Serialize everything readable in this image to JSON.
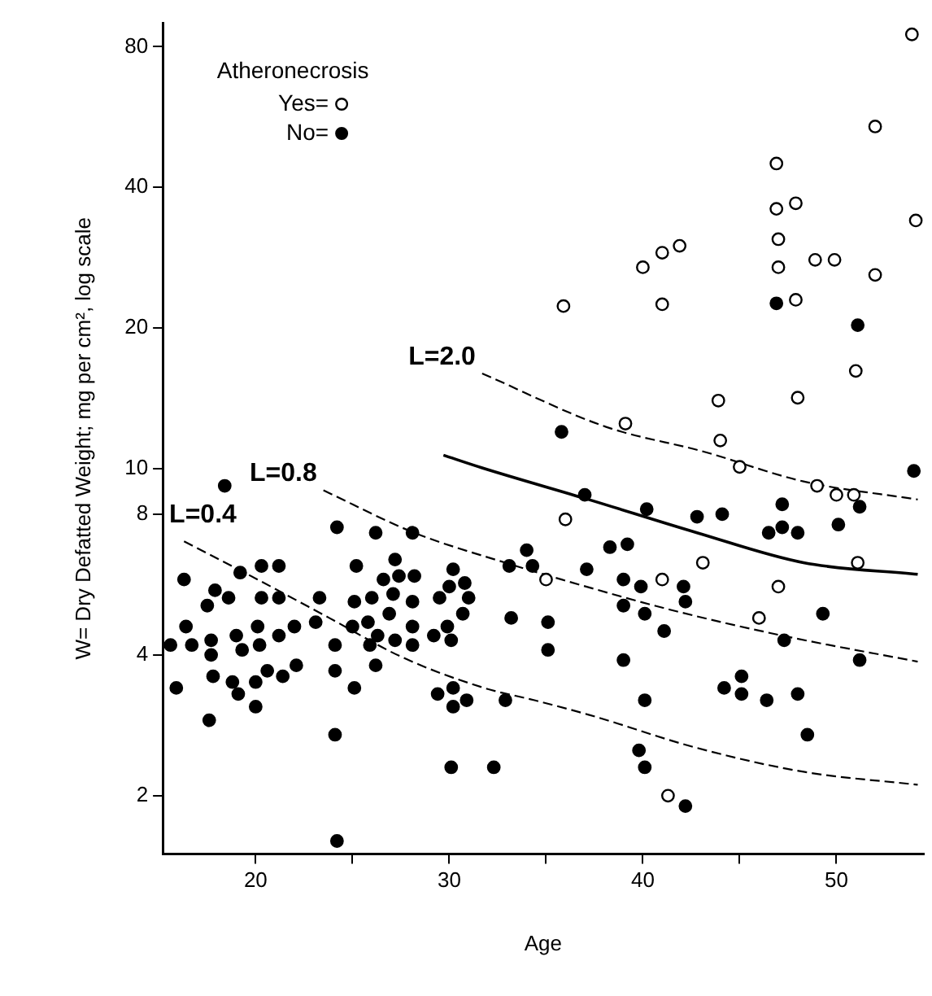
{
  "chart_data": {
    "type": "scatter",
    "xlabel": "Age",
    "ylabel": "W= Dry Defatted Weight; mg per cm², log scale",
    "legend_title": "Atheronecrosis",
    "legend": "top left",
    "log": "y",
    "grid": false,
    "xlim": [
      15.2,
      54.5
    ],
    "xticks": [
      20,
      {
        "value": 25,
        "label": null
      },
      30,
      {
        "value": 35,
        "label": null
      },
      40,
      {
        "value": 45,
        "label": null
      },
      50
    ],
    "ylim": [
      1.5,
      90
    ],
    "yticks": [
      2,
      4,
      8,
      10,
      20,
      40,
      80
    ],
    "series": [
      {
        "name": "Yes=",
        "marker": "circle",
        "color": "#ffffff",
        "x": [
          36.0,
          35.0,
          41.0,
          43.1,
          47.0,
          46.0,
          41.3,
          45.0,
          44.0,
          49.0,
          50.0,
          50.9,
          51.1,
          53.9,
          52.0,
          46.9,
          46.9,
          47.9,
          47.0,
          47.0,
          48.9,
          49.9,
          52.0,
          54.1,
          40.0,
          41.0,
          41.9,
          41.0,
          35.9,
          47.9,
          51.0,
          48.0,
          43.9,
          39.1
        ],
        "values": [
          7.8,
          5.8,
          5.8,
          6.3,
          5.6,
          4.8,
          2.0,
          10.1,
          11.5,
          9.2,
          8.8,
          8.8,
          6.3,
          85,
          54,
          45,
          36,
          37,
          31,
          27,
          28,
          28,
          26,
          34,
          27,
          29,
          30,
          22.5,
          22.3,
          23,
          16.2,
          14.2,
          14.0,
          12.5
        ]
      },
      {
        "name": "No=",
        "marker": "circle",
        "color": "#000000",
        "x": [
          18.4,
          24.2,
          26.2,
          28.1,
          20.3,
          21.2,
          25.2,
          27.2,
          16.3,
          19.2,
          27.4,
          26.6,
          28.2,
          17.9,
          18.6,
          20.3,
          21.2,
          23.3,
          27.1,
          26.0,
          25.1,
          28.1,
          17.5,
          26.9,
          16.4,
          20.1,
          22.0,
          23.1,
          25.0,
          25.8,
          28.1,
          16.7,
          17.7,
          19.0,
          26.3,
          21.2,
          27.2,
          15.6,
          17.7,
          19.3,
          20.2,
          24.1,
          25.9,
          28.1,
          20.6,
          22.1,
          26.2,
          17.8,
          18.8,
          20.0,
          21.4,
          24.1,
          15.9,
          19.1,
          25.1,
          20.0,
          17.6,
          24.1,
          24.2,
          30.1,
          32.3,
          29.2,
          29.9,
          30.1,
          30.7,
          29.5,
          30.0,
          30.2,
          30.8,
          31.0,
          29.4,
          30.2,
          30.2,
          30.9,
          32.9,
          33.2,
          33.1,
          34.0,
          34.3,
          37.0,
          40.2,
          42.8,
          44.1,
          47.2,
          46.5,
          47.2,
          48.0,
          50.1,
          51.2,
          54.0,
          38.3,
          39.2,
          37.1,
          39.0,
          39.9,
          42.1,
          42.2,
          39.0,
          40.1,
          35.1,
          35.1,
          41.1,
          39.0,
          47.3,
          49.3,
          51.2,
          40.1,
          44.2,
          45.1,
          45.1,
          46.4,
          48.0,
          48.5,
          39.8,
          40.1,
          42.2,
          46.9,
          51.1,
          35.8
        ],
        "values": [
          9.2,
          7.5,
          7.3,
          7.3,
          6.2,
          6.2,
          6.2,
          6.4,
          5.8,
          6.0,
          5.9,
          5.8,
          5.9,
          5.5,
          5.3,
          5.3,
          5.3,
          5.3,
          5.4,
          5.3,
          5.2,
          5.2,
          5.1,
          4.9,
          4.6,
          4.6,
          4.6,
          4.7,
          4.6,
          4.7,
          4.6,
          4.2,
          4.3,
          4.4,
          4.4,
          4.4,
          4.3,
          4.2,
          4.0,
          4.1,
          4.2,
          4.2,
          4.2,
          4.2,
          3.7,
          3.8,
          3.8,
          3.6,
          3.5,
          3.5,
          3.6,
          3.7,
          3.4,
          3.3,
          3.4,
          3.1,
          2.9,
          2.7,
          1.6,
          2.3,
          2.3,
          4.4,
          4.6,
          4.3,
          4.9,
          5.3,
          5.6,
          6.1,
          5.7,
          5.3,
          3.3,
          3.4,
          3.1,
          3.2,
          3.2,
          4.8,
          6.2,
          6.7,
          6.2,
          8.8,
          8.2,
          7.9,
          8.0,
          8.4,
          7.3,
          7.5,
          7.3,
          7.6,
          8.3,
          9.9,
          6.8,
          6.9,
          6.1,
          5.8,
          5.6,
          5.6,
          5.2,
          5.1,
          4.9,
          4.7,
          4.1,
          4.5,
          3.9,
          4.3,
          4.9,
          3.9,
          3.2,
          3.4,
          3.6,
          3.3,
          3.2,
          3.3,
          2.7,
          2.5,
          2.3,
          1.9,
          22.6,
          20.3,
          12.0
        ]
      },
      {
        "type": "line",
        "marker": "none",
        "color": "#000000",
        "line_style": "dashed",
        "x": [
          16.3,
          20.1,
          23.8,
          27.6,
          31.8,
          34.4,
          37.2,
          42.8,
          48.3,
          54.2
        ],
        "values": [
          7.0,
          5.8,
          4.8,
          3.95,
          3.4,
          3.2,
          2.98,
          2.53,
          2.25,
          2.11
        ]
      },
      {
        "type": "line",
        "marker": "none",
        "color": "#000000",
        "line_style": "dashed",
        "x": [
          23.5,
          28.2,
          32.9,
          35.8,
          41.4,
          47.2,
          54.2
        ],
        "values": [
          9.0,
          7.3,
          6.3,
          5.8,
          5.0,
          4.4,
          3.87
        ]
      },
      {
        "type": "line",
        "marker": "none",
        "color": "#000000",
        "line_style": "dashed",
        "x": [
          31.7,
          38.1,
          43.1,
          48.3,
          54.2
        ],
        "values": [
          16.0,
          12.3,
          10.9,
          9.4,
          8.6
        ]
      },
      {
        "type": "line",
        "marker": "none",
        "color": "#000000",
        "line_style": "solid",
        "x": [
          29.7,
          31.7,
          37.2,
          42.8,
          48.3,
          54.2
        ],
        "values": [
          10.7,
          10.05,
          8.6,
          7.3,
          6.3,
          5.95
        ]
      }
    ],
    "annotations": [
      {
        "text": "L=2.0",
        "x": 31.7,
        "y": 16.0
      },
      {
        "text": "L=0.8",
        "x": 23.5,
        "y": 9.0
      },
      {
        "text": "L=0.4",
        "x": 16.3,
        "y": 7.0
      }
    ]
  }
}
